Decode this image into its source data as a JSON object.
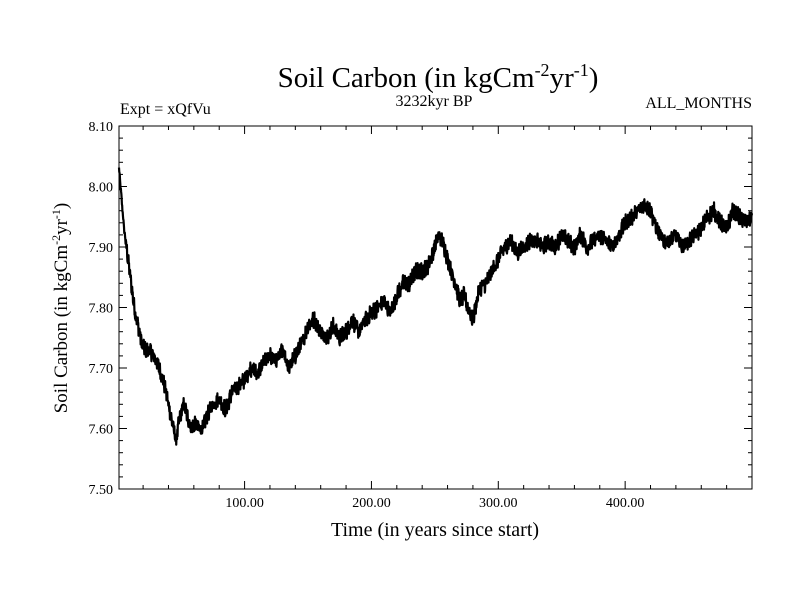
{
  "chart_data": {
    "type": "line",
    "title_main": "Soil Carbon (in kgCm",
    "title_exp1": "-2",
    "title_mid": "yr",
    "title_exp2": "-1",
    "title_end": ")",
    "expt_label": "Expt = xQfVu",
    "period_label": "3232kyr BP",
    "months_label": "ALL_MONTHS",
    "xlabel": "Time (in years since start)",
    "ylabel_main": "Soil Carbon (in kgCm",
    "ylabel_exp1": "-2",
    "ylabel_mid": "yr",
    "ylabel_exp2": "-1",
    "ylabel_end": ")",
    "xlim": [
      1,
      500
    ],
    "ylim": [
      7.5,
      8.1
    ],
    "x_ticks": [
      {
        "value": 100,
        "label": "100.00"
      },
      {
        "value": 200,
        "label": "200.00"
      },
      {
        "value": 300,
        "label": "300.00"
      },
      {
        "value": 400,
        "label": "400.00"
      }
    ],
    "y_ticks": [
      {
        "value": 7.5,
        "label": "7.50"
      },
      {
        "value": 7.6,
        "label": "7.60"
      },
      {
        "value": 7.7,
        "label": "7.70"
      },
      {
        "value": 7.8,
        "label": "7.80"
      },
      {
        "value": 7.9,
        "label": "7.90"
      },
      {
        "value": 8.0,
        "label": "8.00"
      },
      {
        "value": 8.1,
        "label": "8.10"
      }
    ],
    "series": [
      {
        "name": "Soil Carbon",
        "color": "#000000",
        "x": [
          1,
          3,
          5,
          8,
          10,
          13,
          16,
          19,
          22,
          25,
          28,
          31,
          34,
          37,
          40,
          43,
          46,
          49,
          52,
          55,
          58,
          61,
          64,
          67,
          70,
          75,
          80,
          85,
          90,
          95,
          100,
          105,
          110,
          115,
          120,
          125,
          130,
          135,
          140,
          145,
          150,
          155,
          160,
          165,
          170,
          175,
          180,
          185,
          190,
          195,
          200,
          205,
          210,
          215,
          220,
          225,
          230,
          235,
          240,
          245,
          250,
          253,
          256,
          260,
          263,
          266,
          270,
          273,
          276,
          280,
          285,
          290,
          295,
          300,
          305,
          310,
          315,
          320,
          325,
          330,
          335,
          340,
          345,
          350,
          355,
          360,
          365,
          370,
          375,
          380,
          385,
          390,
          395,
          400,
          405,
          410,
          415,
          420,
          425,
          430,
          435,
          440,
          445,
          450,
          455,
          460,
          465,
          470,
          475,
          480,
          485,
          490,
          495,
          500
        ],
        "values": [
          8.03,
          7.98,
          7.93,
          7.88,
          7.85,
          7.8,
          7.77,
          7.74,
          7.73,
          7.73,
          7.72,
          7.71,
          7.69,
          7.67,
          7.64,
          7.61,
          7.58,
          7.62,
          7.64,
          7.62,
          7.6,
          7.61,
          7.6,
          7.6,
          7.62,
          7.64,
          7.65,
          7.63,
          7.66,
          7.67,
          7.68,
          7.7,
          7.69,
          7.71,
          7.72,
          7.71,
          7.73,
          7.7,
          7.72,
          7.74,
          7.77,
          7.78,
          7.76,
          7.75,
          7.77,
          7.75,
          7.76,
          7.78,
          7.76,
          7.78,
          7.79,
          7.8,
          7.81,
          7.79,
          7.82,
          7.84,
          7.84,
          7.86,
          7.86,
          7.87,
          7.9,
          7.92,
          7.91,
          7.88,
          7.86,
          7.84,
          7.81,
          7.82,
          7.8,
          7.78,
          7.83,
          7.84,
          7.86,
          7.88,
          7.9,
          7.91,
          7.89,
          7.9,
          7.91,
          7.91,
          7.9,
          7.91,
          7.9,
          7.92,
          7.91,
          7.9,
          7.92,
          7.9,
          7.91,
          7.92,
          7.91,
          7.9,
          7.92,
          7.94,
          7.95,
          7.96,
          7.97,
          7.96,
          7.93,
          7.91,
          7.91,
          7.92,
          7.9,
          7.91,
          7.92,
          7.93,
          7.95,
          7.96,
          7.94,
          7.93,
          7.96,
          7.95,
          7.94,
          7.95
        ]
      }
    ]
  }
}
